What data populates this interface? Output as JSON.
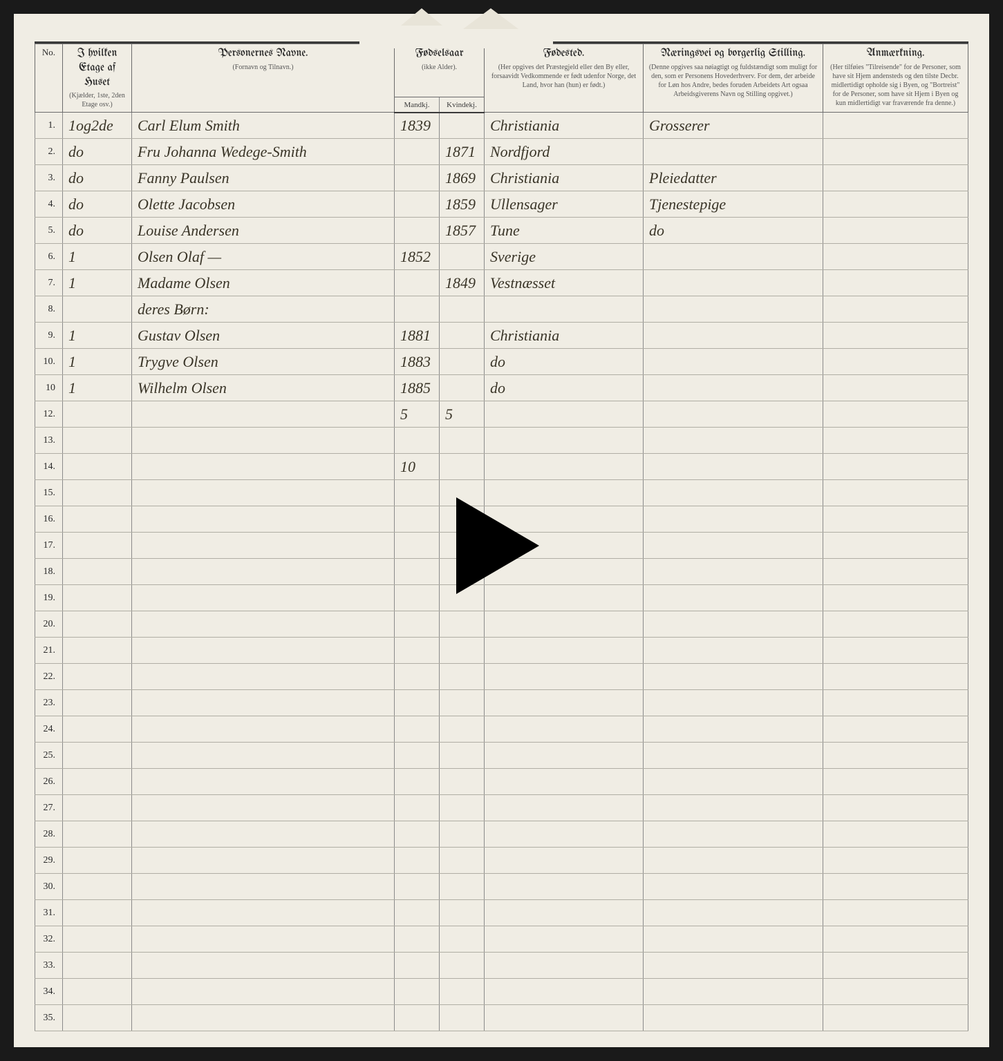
{
  "page": {
    "background_color": "#f0ede4",
    "ink_color": "#3a3528",
    "rule_color": "#8a8a8a"
  },
  "headers": {
    "no": "No.",
    "etage": {
      "main": "I hvilken Etage af Huset",
      "sub": "(Kjælder, 1ste, 2den Etage osv.)"
    },
    "navn": {
      "main": "Personernes Navne.",
      "sub": "(Fornavn og Tilnavn.)"
    },
    "fodselsaar": {
      "main": "Fødselsaar",
      "sub": "(ikke Alder)."
    },
    "mandkj": "Mandkj.",
    "kvindekj": "Kvindekj.",
    "fodested": {
      "main": "Fødested.",
      "sub": "(Her opgives det Præstegjeld eller den By eller, forsaavidt Vedkommende er født udenfor Norge, det Land, hvor han (hun) er født.)"
    },
    "stilling": {
      "main": "Næringsvei og borgerlig Stilling.",
      "sub": "(Denne opgives saa nøiagtigt og fuldstændigt som muligt for den, som er Personens Hovederhverv. For dem, der arbeide for Løn hos Andre, bedes foruden Arbeidets Art ogsaa Arbeidsgiverens Navn og Stilling opgivet.)"
    },
    "anm": {
      "main": "Anmærkning.",
      "sub": "(Her tilføies \"Tilreisende\" for de Personer, som have sit Hjem andensteds og den tilste Decbr. midlertidigt opholde sig i Byen, og \"Bortreist\" for de Personer, som have sit Hjem i Byen og kun midlertidigt var fraværende fra denne.)"
    }
  },
  "rows": [
    {
      "no": "1.",
      "etage": "1og2de",
      "navn": "Carl Elum Smith",
      "m": "1839",
      "k": "",
      "sted": "Christiania",
      "still": "Grosserer"
    },
    {
      "no": "2.",
      "etage": "do",
      "navn": "Fru Johanna Wedege-Smith",
      "m": "",
      "k": "1871",
      "sted": "Nordfjord",
      "still": ""
    },
    {
      "no": "3.",
      "etage": "do",
      "navn": "Fanny Paulsen",
      "m": "",
      "k": "1869",
      "sted": "Christiania",
      "still": "Pleiedatter"
    },
    {
      "no": "4.",
      "etage": "do",
      "navn": "Olette Jacobsen",
      "m": "",
      "k": "1859",
      "sted": "Ullensager",
      "still": "Tjenestepige"
    },
    {
      "no": "5.",
      "etage": "do",
      "navn": "Louise Andersen",
      "m": "",
      "k": "1857",
      "sted": "Tune",
      "still": "do"
    },
    {
      "no": "6.",
      "etage": "1",
      "navn": "Olsen Olaf —",
      "m": "1852",
      "k": "",
      "sted": "Sverige",
      "still": ""
    },
    {
      "no": "7.",
      "etage": "1",
      "navn": "Madame Olsen",
      "m": "",
      "k": "1849",
      "sted": "Vestnæsset",
      "still": ""
    },
    {
      "no": "8.",
      "etage": "",
      "navn": "deres Børn:",
      "m": "",
      "k": "",
      "sted": "",
      "still": ""
    },
    {
      "no": "9.",
      "etage": "1",
      "navn": "Gustav Olsen",
      "m": "1881",
      "k": "",
      "sted": "Christiania",
      "still": ""
    },
    {
      "no": "10.",
      "etage": "1",
      "navn": "Trygve Olsen",
      "m": "1883",
      "k": "",
      "sted": "do",
      "still": ""
    },
    {
      "no": "10",
      "etage": "1",
      "navn": "Wilhelm Olsen",
      "m": "1885",
      "k": "",
      "sted": "do",
      "still": ""
    },
    {
      "no": "12.",
      "etage": "",
      "navn": "",
      "m": "5",
      "k": "5",
      "sted": "",
      "still": ""
    },
    {
      "no": "13.",
      "etage": "",
      "navn": "",
      "m": "",
      "k": "",
      "sted": "",
      "still": ""
    },
    {
      "no": "14.",
      "etage": "",
      "navn": "",
      "m": "10",
      "k": "",
      "sted": "",
      "still": ""
    },
    {
      "no": "15.",
      "etage": "",
      "navn": "",
      "m": "",
      "k": "",
      "sted": "",
      "still": ""
    },
    {
      "no": "16.",
      "etage": "",
      "navn": "",
      "m": "",
      "k": "",
      "sted": "",
      "still": ""
    },
    {
      "no": "17.",
      "etage": "",
      "navn": "",
      "m": "",
      "k": "",
      "sted": "",
      "still": ""
    },
    {
      "no": "18.",
      "etage": "",
      "navn": "",
      "m": "",
      "k": "",
      "sted": "",
      "still": ""
    },
    {
      "no": "19.",
      "etage": "",
      "navn": "",
      "m": "",
      "k": "",
      "sted": "",
      "still": ""
    },
    {
      "no": "20.",
      "etage": "",
      "navn": "",
      "m": "",
      "k": "",
      "sted": "",
      "still": ""
    },
    {
      "no": "21.",
      "etage": "",
      "navn": "",
      "m": "",
      "k": "",
      "sted": "",
      "still": ""
    },
    {
      "no": "22.",
      "etage": "",
      "navn": "",
      "m": "",
      "k": "",
      "sted": "",
      "still": ""
    },
    {
      "no": "23.",
      "etage": "",
      "navn": "",
      "m": "",
      "k": "",
      "sted": "",
      "still": ""
    },
    {
      "no": "24.",
      "etage": "",
      "navn": "",
      "m": "",
      "k": "",
      "sted": "",
      "still": ""
    },
    {
      "no": "25.",
      "etage": "",
      "navn": "",
      "m": "",
      "k": "",
      "sted": "",
      "still": ""
    },
    {
      "no": "26.",
      "etage": "",
      "navn": "",
      "m": "",
      "k": "",
      "sted": "",
      "still": ""
    },
    {
      "no": "27.",
      "etage": "",
      "navn": "",
      "m": "",
      "k": "",
      "sted": "",
      "still": ""
    },
    {
      "no": "28.",
      "etage": "",
      "navn": "",
      "m": "",
      "k": "",
      "sted": "",
      "still": ""
    },
    {
      "no": "29.",
      "etage": "",
      "navn": "",
      "m": "",
      "k": "",
      "sted": "",
      "still": ""
    },
    {
      "no": "30.",
      "etage": "",
      "navn": "",
      "m": "",
      "k": "",
      "sted": "",
      "still": ""
    },
    {
      "no": "31.",
      "etage": "",
      "navn": "",
      "m": "",
      "k": "",
      "sted": "",
      "still": ""
    },
    {
      "no": "32.",
      "etage": "",
      "navn": "",
      "m": "",
      "k": "",
      "sted": "",
      "still": ""
    },
    {
      "no": "33.",
      "etage": "",
      "navn": "",
      "m": "",
      "k": "",
      "sted": "",
      "still": ""
    },
    {
      "no": "34.",
      "etage": "",
      "navn": "",
      "m": "",
      "k": "",
      "sted": "",
      "still": ""
    },
    {
      "no": "35.",
      "etage": "",
      "navn": "",
      "m": "",
      "k": "",
      "sted": "",
      "still": ""
    }
  ],
  "overlay": {
    "type": "play-button",
    "color": "#000000"
  }
}
